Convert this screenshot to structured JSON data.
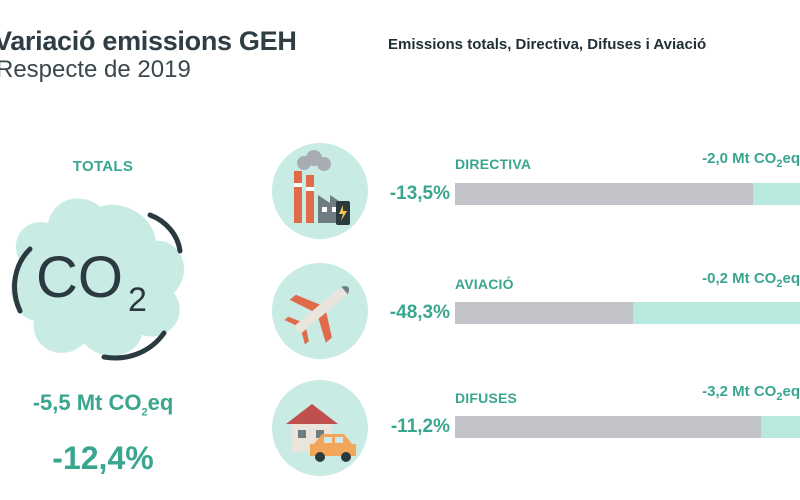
{
  "title": "Variació emissions GEH",
  "subtitle": "Respecte de 2019",
  "header_right": "Emissions totals, Directiva, Difuses i Aviació",
  "totals": {
    "label": "TOTALS",
    "value_prefix": "-5,5 Mt CO",
    "value_sub": "2",
    "value_suffix": "eq",
    "pct": "-12,4%"
  },
  "colors": {
    "accent": "#3aa690",
    "bar_bg": "#b8e9df",
    "bar_fill": "#c3c4c9",
    "circle": "#c8ece4"
  },
  "chart_data": {
    "type": "bar",
    "title": "Emissions totals, Directiva, Difuses i Aviació",
    "categories": [
      "DIRECTIVA",
      "AVIACIÓ",
      "DIFUSES"
    ],
    "values": [
      -13.5,
      -48.3,
      -11.2
    ],
    "value_labels": [
      "-13,5%",
      "-48,3%",
      "-11,2%"
    ],
    "mt_labels": [
      {
        "prefix": "-2,0 Mt CO",
        "sub": "2",
        "suffix": "eq"
      },
      {
        "prefix": "-0,2 Mt CO",
        "sub": "2",
        "suffix": "eq"
      },
      {
        "prefix": "-3,2 Mt CO",
        "sub": "2",
        "suffix": "eq"
      }
    ],
    "bar_fill_fraction": [
      0.865,
      0.517,
      0.888
    ],
    "icons": [
      "factory-icon",
      "airplane-icon",
      "house-car-icon"
    ]
  }
}
